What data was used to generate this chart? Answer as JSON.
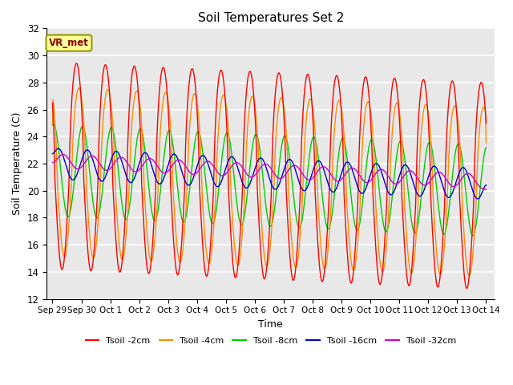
{
  "title": "Soil Temperatures Set 2",
  "xlabel": "Time",
  "ylabel": "Soil Temperature (C)",
  "ylim": [
    12,
    32
  ],
  "background_color": "#e8e8e8",
  "grid_color": "#ffffff",
  "annotation_text": "VR_met",
  "annotation_box_color": "#ffff99",
  "annotation_border_color": "#999900",
  "annotation_text_color": "#8B0000",
  "x_tick_labels": [
    "Sep 29",
    "Sep 30",
    "Oct 1",
    "Oct 2",
    "Oct 3",
    "Oct 4",
    "Oct 5",
    "Oct 6",
    "Oct 7",
    "Oct 8",
    "Oct 9",
    "Oct 10",
    "Oct 11",
    "Oct 12",
    "Oct 13",
    "Oct 14"
  ],
  "x_tick_positions": [
    0,
    1,
    2,
    3,
    4,
    5,
    6,
    7,
    8,
    9,
    10,
    11,
    12,
    13,
    14,
    15
  ],
  "legend_labels": [
    "Tsoil -2cm",
    "Tsoil -4cm",
    "Tsoil -8cm",
    "Tsoil -16cm",
    "Tsoil -32cm"
  ],
  "line_colors": [
    "#ff0000",
    "#ff8c00",
    "#00cc00",
    "#0000cc",
    "#cc00cc"
  ],
  "fig_facecolor": "#ffffff"
}
